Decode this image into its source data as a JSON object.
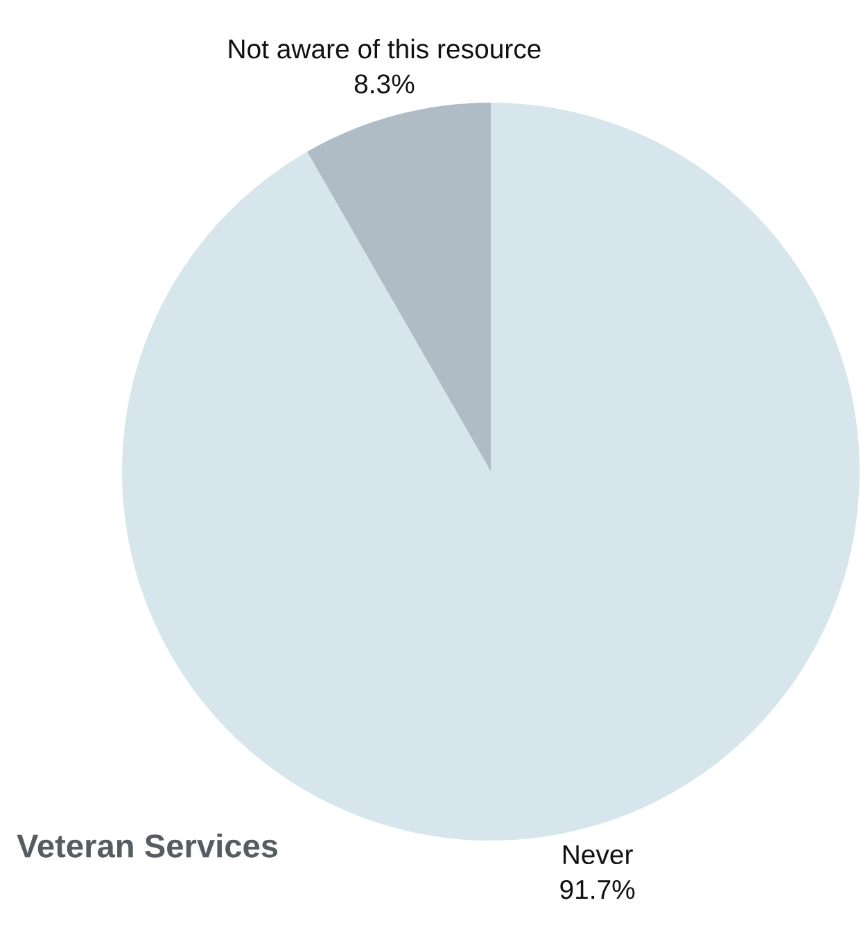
{
  "chart_data": {
    "type": "pie",
    "title": "Veteran Services",
    "categories": [
      "Not aware of this resource",
      "Never"
    ],
    "values": [
      8.3,
      91.7
    ],
    "value_labels": [
      "8.3%",
      "91.7%"
    ],
    "colors": [
      "#afbcc5",
      "#d6e6ec"
    ],
    "legend": false
  }
}
